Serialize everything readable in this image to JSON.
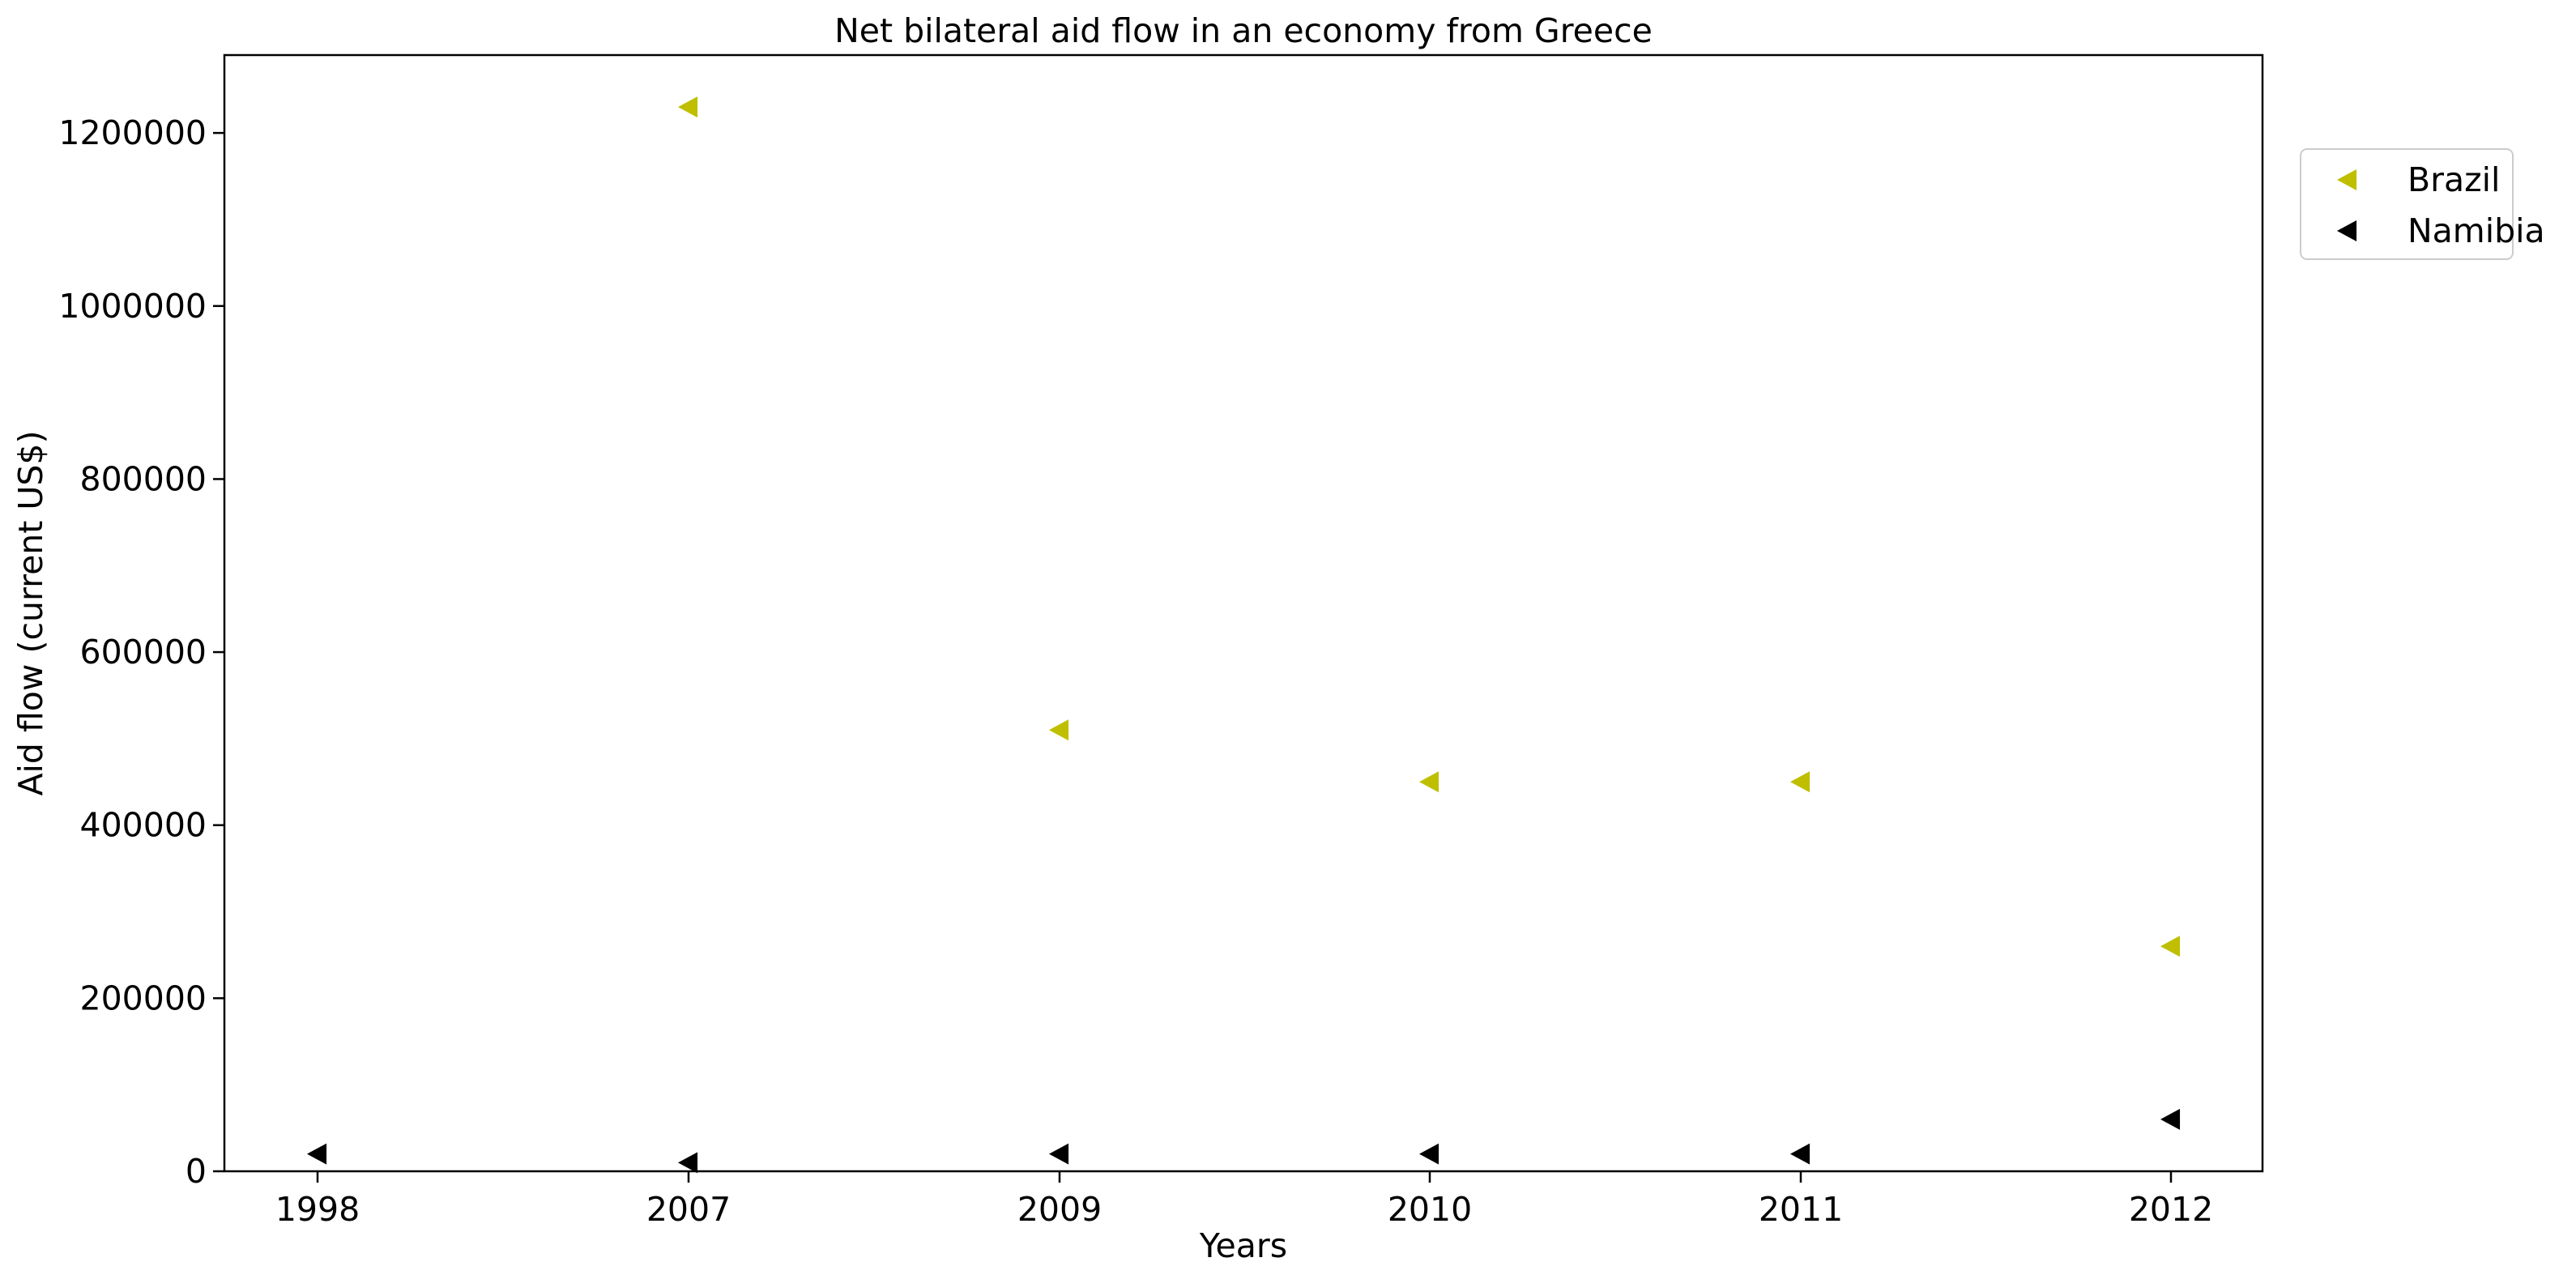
{
  "chart_data": {
    "type": "scatter",
    "title": "Net bilateral aid flow in an economy from Greece",
    "xlabel": "Years",
    "ylabel": "Aid flow (current US$)",
    "categories": [
      "1998",
      "2007",
      "2009",
      "2010",
      "2011",
      "2012"
    ],
    "ylim": [
      0,
      1290000
    ],
    "yticks": [
      0,
      200000,
      400000,
      600000,
      800000,
      1000000,
      1200000
    ],
    "ytick_labels": [
      "0",
      "200000",
      "400000",
      "600000",
      "800000",
      "1000000",
      "1200000"
    ],
    "marker": "triangle-left",
    "grid": false,
    "legend_position": "outside-top-right",
    "series": [
      {
        "name": "Brazil",
        "color": "#bfbf00",
        "values": [
          null,
          1230000,
          510000,
          450000,
          450000,
          260000
        ]
      },
      {
        "name": "Namibia",
        "color": "#000000",
        "values": [
          20000,
          10000,
          20000,
          20000,
          20000,
          60000
        ]
      }
    ]
  }
}
